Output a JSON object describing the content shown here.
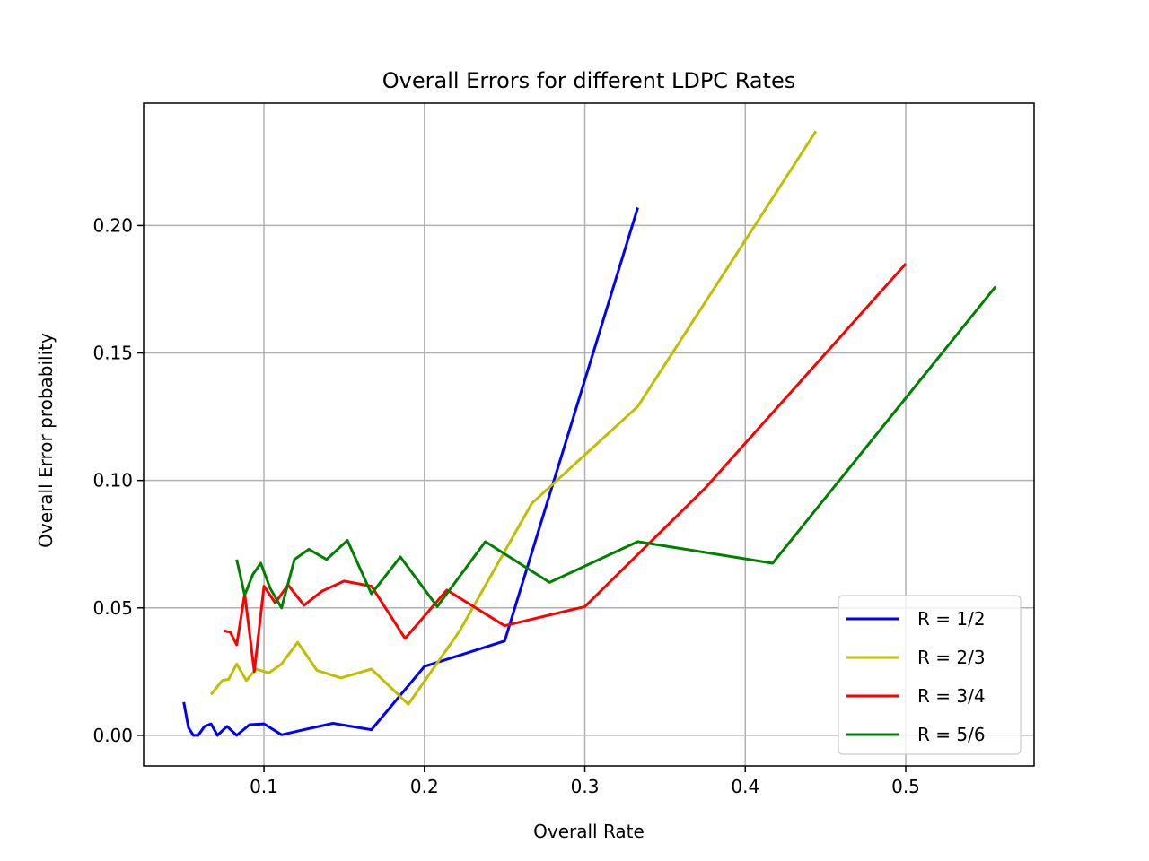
{
  "chart_data": {
    "type": "line",
    "title": "Overall Errors for different LDPC Rates",
    "xlabel": "Overall Rate",
    "ylabel": "Overall Error probability",
    "xlim": [
      0.025,
      0.58
    ],
    "ylim": [
      -0.012,
      0.248
    ],
    "xticks": [
      0.1,
      0.2,
      0.3,
      0.4,
      0.5
    ],
    "xtick_labels": [
      "0.1",
      "0.2",
      "0.3",
      "0.4",
      "0.5"
    ],
    "yticks": [
      0.0,
      0.05,
      0.1,
      0.15,
      0.2
    ],
    "ytick_labels": [
      "0.00",
      "0.05",
      "0.10",
      "0.15",
      "0.20"
    ],
    "grid": true,
    "legend_position": "lower-right",
    "series": [
      {
        "name": "R = 1/2",
        "color": "#0000ff",
        "x": [
          0.05,
          0.053,
          0.056,
          0.059,
          0.063,
          0.067,
          0.071,
          0.077,
          0.083,
          0.091,
          0.1,
          0.111,
          0.125,
          0.143,
          0.167,
          0.2,
          0.25,
          0.333
        ],
        "y": [
          0.013,
          0.003,
          0.0,
          0.0,
          0.0035,
          0.0045,
          0.0,
          0.0035,
          0.0,
          0.0042,
          0.0045,
          0.0002,
          0.0022,
          0.0047,
          0.0022,
          0.027,
          0.037,
          0.207
        ]
      },
      {
        "name": "R = 2/3",
        "color": "#bfbf00",
        "x": [
          0.067,
          0.074,
          0.078,
          0.083,
          0.089,
          0.095,
          0.103,
          0.111,
          0.121,
          0.133,
          0.148,
          0.167,
          0.19,
          0.222,
          0.267,
          0.333,
          0.444
        ],
        "y": [
          0.016,
          0.0215,
          0.022,
          0.028,
          0.0215,
          0.026,
          0.0245,
          0.028,
          0.0365,
          0.0255,
          0.0225,
          0.026,
          0.0122,
          0.041,
          0.091,
          0.129,
          0.237
        ]
      },
      {
        "name": "R = 3/4",
        "color": "#ff0000",
        "x": [
          0.075,
          0.079,
          0.083,
          0.088,
          0.094,
          0.1,
          0.107,
          0.115,
          0.125,
          0.136,
          0.15,
          0.167,
          0.188,
          0.214,
          0.25,
          0.3,
          0.375,
          0.5
        ],
        "y": [
          0.041,
          0.0405,
          0.0355,
          0.0555,
          0.025,
          0.0585,
          0.052,
          0.059,
          0.051,
          0.0565,
          0.0605,
          0.0585,
          0.038,
          0.057,
          0.043,
          0.0505,
          0.097,
          0.185
        ]
      },
      {
        "name": "R = 5/6",
        "color": "#008000",
        "x": [
          0.083,
          0.088,
          0.093,
          0.098,
          0.104,
          0.111,
          0.119,
          0.128,
          0.139,
          0.152,
          0.167,
          0.185,
          0.208,
          0.238,
          0.278,
          0.333,
          0.417,
          0.556
        ],
        "y": [
          0.069,
          0.055,
          0.063,
          0.0675,
          0.0575,
          0.05,
          0.069,
          0.073,
          0.069,
          0.0765,
          0.0555,
          0.07,
          0.0505,
          0.076,
          0.06,
          0.076,
          0.0675,
          0.176
        ]
      }
    ]
  }
}
